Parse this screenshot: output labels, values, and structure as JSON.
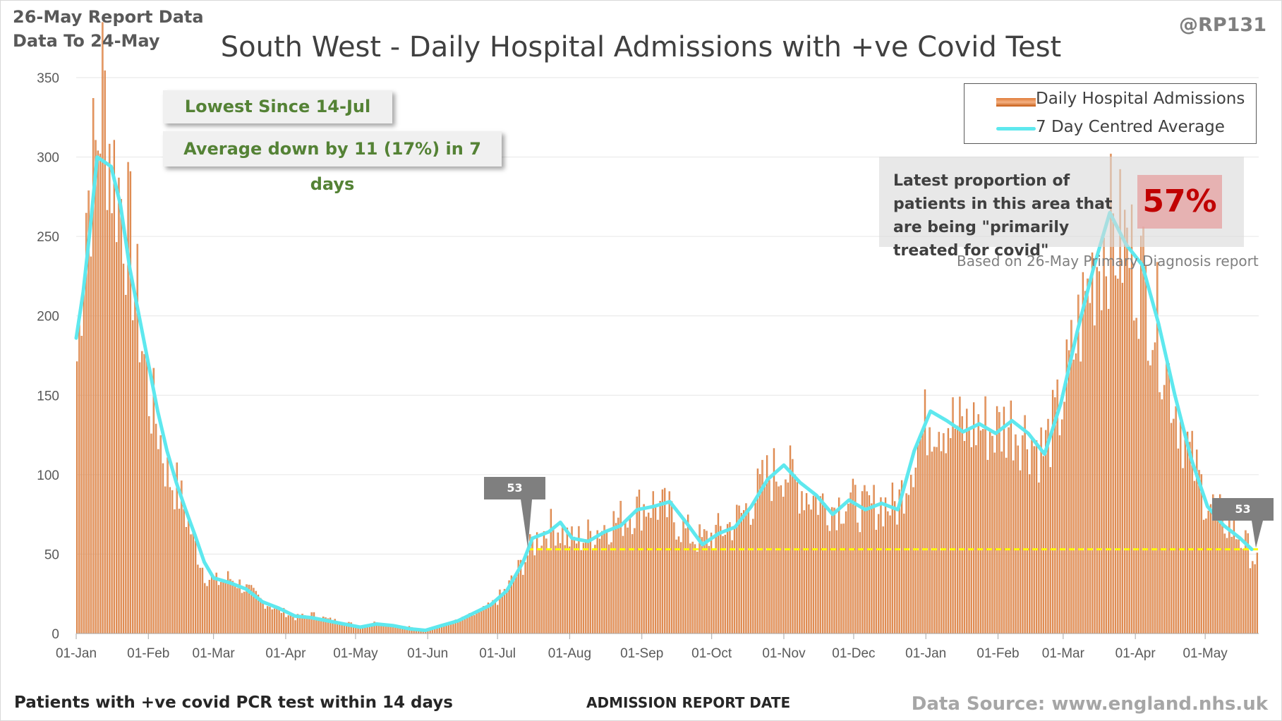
{
  "header": {
    "report_line1": "26-May Report Data",
    "report_line2": "Data To 24-May",
    "handle": "@RP131",
    "title": "South West - Daily Hospital Admissions with +ve Covid Test"
  },
  "footer": {
    "footnote": "Patients with +ve covid PCR test within 14 days",
    "x_axis_title": "ADMISSION REPORT DATE",
    "source": "Data Source: www.england.nhs.uk"
  },
  "notes": {
    "lowest": "Lowest Since 14-Jul",
    "average": "Average down by 11 (17%) in 7 days"
  },
  "legend": {
    "bars": "Daily Hospital Admissions",
    "line": "7 Day Centred Average"
  },
  "proportion": {
    "text": "Latest proportion of patients in this area that are being \"primarily treated for covid\"",
    "value": "57%",
    "source": "Based on 26-May Primary Diagnosis report"
  },
  "callouts": {
    "left": "53",
    "right": "53"
  },
  "colors": {
    "bar": "#d86f2e",
    "average_line": "#5ee8ee",
    "reference_line": "#ffff00",
    "note_text": "#548235",
    "proportion_value": "#c00000"
  },
  "chart_data": {
    "type": "bar",
    "title": "South West - Daily Hospital Admissions with +ve Covid Test",
    "xlabel": "ADMISSION REPORT DATE",
    "ylabel": "",
    "ylim": [
      0,
      350
    ],
    "y_ticks": [
      0,
      50,
      100,
      150,
      200,
      250,
      300,
      350
    ],
    "x_ticks": [
      "01-Jan",
      "01-Feb",
      "01-Mar",
      "01-Apr",
      "01-May",
      "01-Jun",
      "01-Jul",
      "01-Aug",
      "01-Sep",
      "01-Oct",
      "01-Nov",
      "01-Dec",
      "01-Jan",
      "01-Feb",
      "01-Mar",
      "01-Apr",
      "01-May"
    ],
    "x_start": "2021-01-01",
    "x_end": "2022-05-24",
    "grid": true,
    "legend_position": "top-right",
    "reference_line": {
      "value": 53,
      "from": "2021-07-14",
      "to": "2022-05-24"
    },
    "series": [
      {
        "name": "Daily Hospital Admissions",
        "kind": "bar",
        "note": "daily values; sampled weekly below (approximate)",
        "points": [
          [
            "2021-01-01",
            172
          ],
          [
            "2021-01-05",
            271
          ],
          [
            "2021-01-09",
            300
          ],
          [
            "2021-01-12",
            346
          ],
          [
            "2021-01-16",
            296
          ],
          [
            "2021-01-20",
            275
          ],
          [
            "2021-01-24",
            245
          ],
          [
            "2021-01-28",
            195
          ],
          [
            "2021-02-01",
            150
          ],
          [
            "2021-02-05",
            130
          ],
          [
            "2021-02-09",
            100
          ],
          [
            "2021-02-13",
            92
          ],
          [
            "2021-02-17",
            75
          ],
          [
            "2021-02-21",
            55
          ],
          [
            "2021-02-25",
            38
          ],
          [
            "2021-03-01",
            32
          ],
          [
            "2021-03-08",
            35
          ],
          [
            "2021-03-15",
            28
          ],
          [
            "2021-03-22",
            20
          ],
          [
            "2021-03-29",
            15
          ],
          [
            "2021-04-05",
            10
          ],
          [
            "2021-04-12",
            12
          ],
          [
            "2021-04-19",
            9
          ],
          [
            "2021-04-26",
            7
          ],
          [
            "2021-05-03",
            5
          ],
          [
            "2021-05-10",
            7
          ],
          [
            "2021-05-17",
            5
          ],
          [
            "2021-05-24",
            4
          ],
          [
            "2021-05-31",
            2
          ],
          [
            "2021-06-07",
            5
          ],
          [
            "2021-06-14",
            8
          ],
          [
            "2021-06-21",
            12
          ],
          [
            "2021-06-28",
            17
          ],
          [
            "2021-07-05",
            28
          ],
          [
            "2021-07-12",
            45
          ],
          [
            "2021-07-19",
            62
          ],
          [
            "2021-07-26",
            68
          ],
          [
            "2021-08-02",
            58
          ],
          [
            "2021-08-09",
            62
          ],
          [
            "2021-08-16",
            68
          ],
          [
            "2021-08-23",
            72
          ],
          [
            "2021-08-30",
            79
          ],
          [
            "2021-09-06",
            82
          ],
          [
            "2021-09-13",
            76
          ],
          [
            "2021-09-20",
            64
          ],
          [
            "2021-09-27",
            58
          ],
          [
            "2021-10-04",
            64
          ],
          [
            "2021-10-11",
            70
          ],
          [
            "2021-10-18",
            82
          ],
          [
            "2021-10-25",
            98
          ],
          [
            "2021-11-01",
            105
          ],
          [
            "2021-11-08",
            92
          ],
          [
            "2021-11-15",
            85
          ],
          [
            "2021-11-22",
            80
          ],
          [
            "2021-11-29",
            84
          ],
          [
            "2021-12-06",
            78
          ],
          [
            "2021-12-13",
            82
          ],
          [
            "2021-12-20",
            80
          ],
          [
            "2021-12-27",
            112
          ],
          [
            "2022-01-03",
            138
          ],
          [
            "2022-01-10",
            135
          ],
          [
            "2022-01-17",
            128
          ],
          [
            "2022-01-24",
            132
          ],
          [
            "2022-01-31",
            128
          ],
          [
            "2022-02-07",
            133
          ],
          [
            "2022-02-14",
            125
          ],
          [
            "2022-02-21",
            115
          ],
          [
            "2022-02-28",
            140
          ],
          [
            "2022-03-07",
            185
          ],
          [
            "2022-03-14",
            228
          ],
          [
            "2022-03-21",
            255
          ],
          [
            "2022-03-28",
            245
          ],
          [
            "2022-04-04",
            228
          ],
          [
            "2022-04-11",
            195
          ],
          [
            "2022-04-18",
            150
          ],
          [
            "2022-04-25",
            112
          ],
          [
            "2022-05-02",
            85
          ],
          [
            "2022-05-09",
            72
          ],
          [
            "2022-05-16",
            62
          ],
          [
            "2022-05-24",
            45
          ]
        ]
      },
      {
        "name": "7 Day Centred Average",
        "kind": "line",
        "points": [
          [
            "2021-01-01",
            186
          ],
          [
            "2021-01-04",
            215
          ],
          [
            "2021-01-07",
            255
          ],
          [
            "2021-01-10",
            300
          ],
          [
            "2021-01-13",
            297
          ],
          [
            "2021-01-16",
            294
          ],
          [
            "2021-01-20",
            270
          ],
          [
            "2021-01-24",
            230
          ],
          [
            "2021-01-28",
            200
          ],
          [
            "2021-02-01",
            170
          ],
          [
            "2021-02-05",
            140
          ],
          [
            "2021-02-09",
            115
          ],
          [
            "2021-02-13",
            95
          ],
          [
            "2021-02-17",
            78
          ],
          [
            "2021-02-21",
            62
          ],
          [
            "2021-02-25",
            45
          ],
          [
            "2021-03-01",
            35
          ],
          [
            "2021-03-08",
            32
          ],
          [
            "2021-03-15",
            28
          ],
          [
            "2021-03-22",
            20
          ],
          [
            "2021-03-29",
            16
          ],
          [
            "2021-04-05",
            11
          ],
          [
            "2021-04-12",
            10
          ],
          [
            "2021-04-19",
            8
          ],
          [
            "2021-04-26",
            6
          ],
          [
            "2021-05-03",
            4
          ],
          [
            "2021-05-10",
            6
          ],
          [
            "2021-05-17",
            5
          ],
          [
            "2021-05-24",
            3
          ],
          [
            "2021-05-31",
            2
          ],
          [
            "2021-06-07",
            5
          ],
          [
            "2021-06-14",
            8
          ],
          [
            "2021-06-21",
            13
          ],
          [
            "2021-06-28",
            18
          ],
          [
            "2021-07-05",
            27
          ],
          [
            "2021-07-12",
            45
          ],
          [
            "2021-07-16",
            60
          ],
          [
            "2021-07-23",
            64
          ],
          [
            "2021-07-28",
            70
          ],
          [
            "2021-08-02",
            60
          ],
          [
            "2021-08-09",
            58
          ],
          [
            "2021-08-16",
            64
          ],
          [
            "2021-08-23",
            68
          ],
          [
            "2021-08-30",
            78
          ],
          [
            "2021-09-06",
            80
          ],
          [
            "2021-09-13",
            83
          ],
          [
            "2021-09-20",
            70
          ],
          [
            "2021-09-27",
            56
          ],
          [
            "2021-10-04",
            63
          ],
          [
            "2021-10-11",
            67
          ],
          [
            "2021-10-18",
            80
          ],
          [
            "2021-10-25",
            97
          ],
          [
            "2021-11-01",
            106
          ],
          [
            "2021-11-08",
            95
          ],
          [
            "2021-11-15",
            87
          ],
          [
            "2021-11-22",
            75
          ],
          [
            "2021-11-29",
            84
          ],
          [
            "2021-12-06",
            78
          ],
          [
            "2021-12-13",
            82
          ],
          [
            "2021-12-20",
            78
          ],
          [
            "2021-12-27",
            115
          ],
          [
            "2022-01-03",
            140
          ],
          [
            "2022-01-10",
            134
          ],
          [
            "2022-01-17",
            127
          ],
          [
            "2022-01-24",
            132
          ],
          [
            "2022-01-31",
            126
          ],
          [
            "2022-02-07",
            134
          ],
          [
            "2022-02-14",
            126
          ],
          [
            "2022-02-21",
            113
          ],
          [
            "2022-02-28",
            145
          ],
          [
            "2022-03-07",
            190
          ],
          [
            "2022-03-14",
            230
          ],
          [
            "2022-03-21",
            265
          ],
          [
            "2022-03-28",
            245
          ],
          [
            "2022-04-04",
            232
          ],
          [
            "2022-04-11",
            195
          ],
          [
            "2022-04-18",
            150
          ],
          [
            "2022-04-25",
            110
          ],
          [
            "2022-05-02",
            80
          ],
          [
            "2022-05-09",
            68
          ],
          [
            "2022-05-16",
            60
          ],
          [
            "2022-05-21",
            53
          ]
        ]
      }
    ]
  }
}
